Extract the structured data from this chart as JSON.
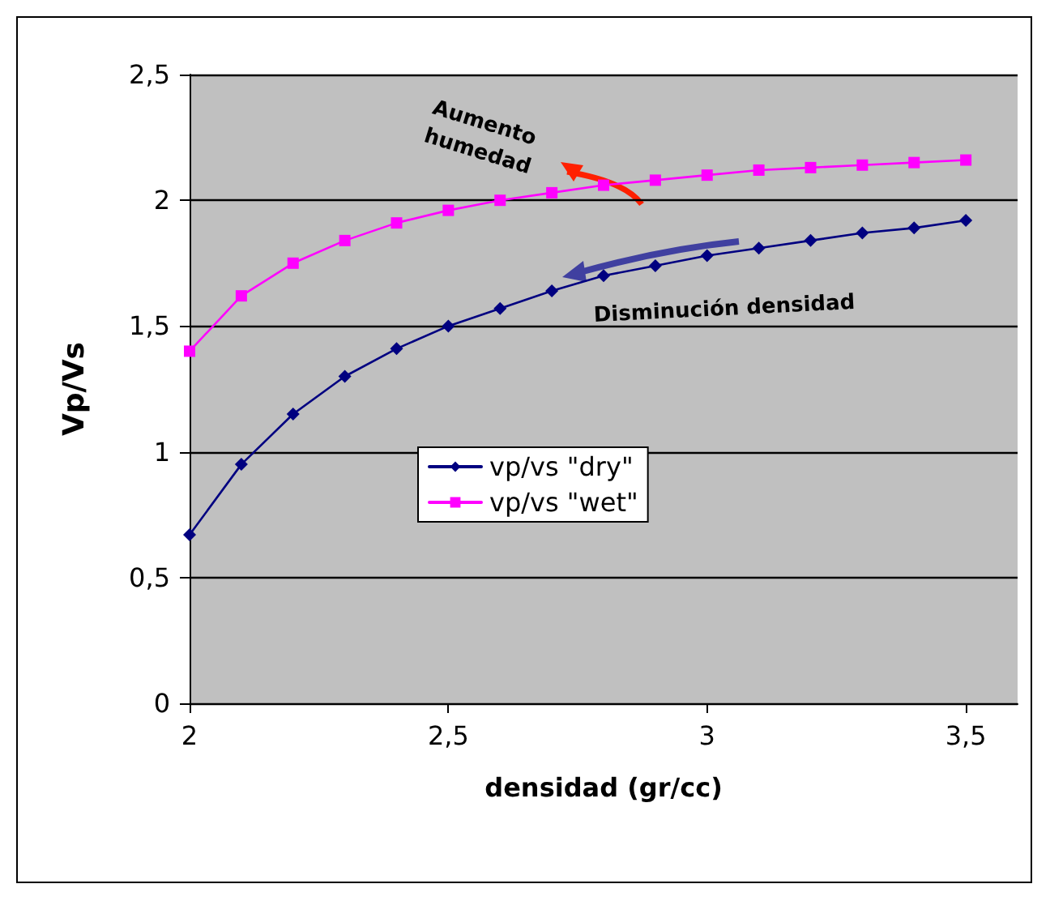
{
  "chart_data": {
    "type": "line",
    "xlabel": "densidad (gr/cc)",
    "ylabel": "Vp/Vs",
    "x": [
      2,
      2.1,
      2.2,
      2.3,
      2.4,
      2.5,
      2.6,
      2.7,
      2.8,
      2.9,
      3,
      3.1,
      3.2,
      3.3,
      3.4,
      3.5
    ],
    "series": [
      {
        "name": "vp/vs \"dry\"",
        "color": "#000080",
        "marker": "diamond",
        "values": [
          0.67,
          0.95,
          1.15,
          1.3,
          1.41,
          1.5,
          1.57,
          1.64,
          1.7,
          1.74,
          1.78,
          1.81,
          1.84,
          1.87,
          1.89,
          1.92
        ]
      },
      {
        "name": "vp/vs \"wet\"",
        "color": "#ff00ff",
        "marker": "square",
        "values": [
          1.4,
          1.62,
          1.75,
          1.84,
          1.91,
          1.96,
          2,
          2.03,
          2.06,
          2.08,
          2.1,
          2.12,
          2.13,
          2.14,
          2.15,
          2.16
        ]
      }
    ],
    "xlim": [
      2,
      3.6
    ],
    "ylim": [
      0,
      2.5
    ],
    "xticks": [
      2,
      {
        "value": 2.5,
        "label": "2,5"
      },
      3,
      {
        "value": 3.5,
        "label": "3,5"
      }
    ],
    "yticks": [
      0,
      {
        "value": 0.5,
        "label": "0,5"
      },
      1,
      {
        "value": 1.5,
        "label": "1,5"
      },
      2,
      {
        "value": 2.5,
        "label": "2,5"
      }
    ],
    "annotations": [
      "Aumento humedad",
      "Disminución densidad"
    ],
    "grid": "y",
    "legend": "center",
    "line_style": "solid"
  }
}
